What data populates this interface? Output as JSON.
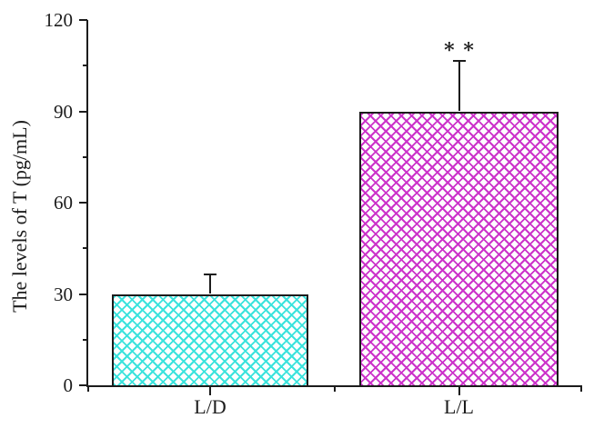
{
  "figure": {
    "background": "#ffffff",
    "axis_color": "#1c1c1c"
  },
  "chart_data": {
    "type": "bar",
    "title": "",
    "xlabel": "",
    "ylabel": "The levels of T (pg/mL)",
    "categories": [
      "L/D",
      "L/L"
    ],
    "values": [
      30,
      90
    ],
    "errors_plus": [
      6.5,
      16.5
    ],
    "annotations": [
      "",
      "∗∗"
    ],
    "ylim": [
      0,
      120
    ],
    "yticks": [
      0,
      30,
      60,
      90,
      120
    ],
    "ytick_labels": [
      "0",
      "30",
      "60",
      "90",
      "120"
    ],
    "minor_ytick_step": 15,
    "grid": false,
    "legend": "none",
    "bar_pattern": "diagonal-crosshatch",
    "bar_colors": [
      "#3BE3DD",
      "#CC33CA"
    ],
    "bar_edge_color": "#1c1c1c",
    "error_bar_color": "#1c1c1c"
  }
}
